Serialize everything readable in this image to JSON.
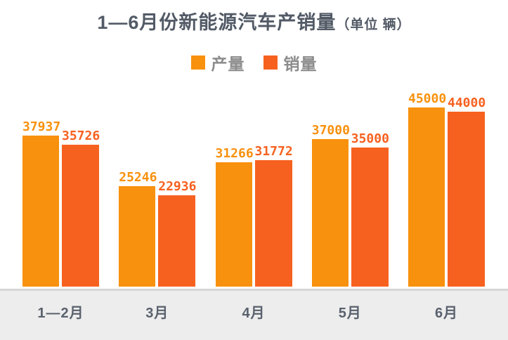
{
  "title": {
    "main": "1—6月份新能源汽车产销量",
    "unit": "（单位 辆）"
  },
  "colors": {
    "production": "#F8910D",
    "sales": "#F7611F",
    "title_text": "#525A66",
    "legend_text": "#8C8C8C",
    "axis_text": "#59616D",
    "footer_bg": "#EDEDED",
    "divider": "#D6D6D6",
    "background": "#FFFFFF"
  },
  "chart_data": {
    "type": "bar",
    "title": "1—6月份新能源汽车产销量（单位 辆）",
    "categories": [
      "1—2月",
      "3月",
      "4月",
      "5月",
      "6月"
    ],
    "series": [
      {
        "name": "产量",
        "color": "#F8910D",
        "values": [
          37937,
          25246,
          31266,
          37000,
          45000
        ]
      },
      {
        "name": "销量",
        "color": "#F7611F",
        "values": [
          35726,
          22936,
          31772,
          35000,
          44000
        ]
      }
    ],
    "ylim": [
      0,
      45000
    ],
    "value_labels": true,
    "legend_position": "top",
    "grid": false,
    "xlabel": "",
    "ylabel": ""
  }
}
